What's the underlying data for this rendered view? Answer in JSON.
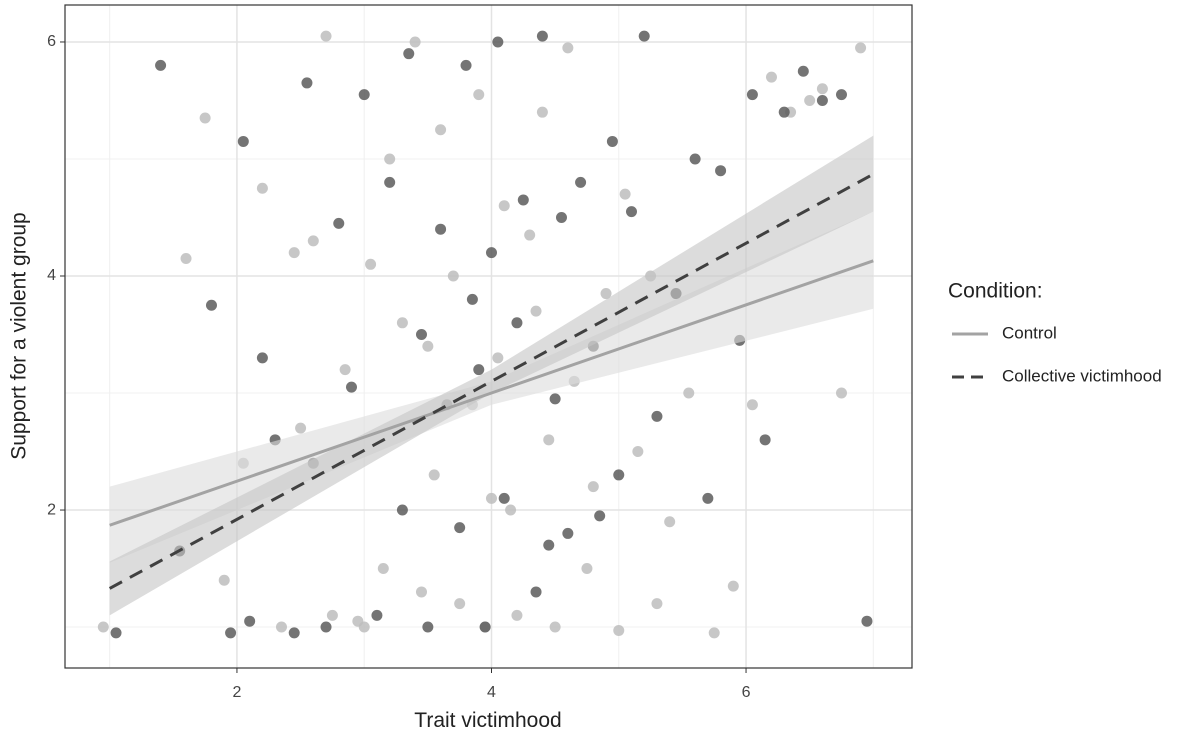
{
  "chart_data": {
    "type": "scatter",
    "x_label": "Trait victimhood",
    "y_label": "Support for a violent group",
    "legend_title": "Condition:",
    "legend_position": "right",
    "xlim": [
      0.649,
      7.304
    ],
    "ylim": [
      0.65,
      6.316
    ],
    "xticks": [
      2,
      4,
      6
    ],
    "yticks": [
      2,
      4,
      6
    ],
    "xminorticks": [
      1,
      3,
      5,
      7
    ],
    "yminorticks": [
      1,
      3,
      5
    ],
    "grid": true,
    "series": [
      {
        "name": "Control",
        "color": "#bdbdbd",
        "line_color": "#a3a3a3",
        "band_color": "#dcdcdc",
        "line_style": "solid",
        "x": [
          0.95,
          1.6,
          1.75,
          1.9,
          2.05,
          2.2,
          2.35,
          2.45,
          2.6,
          2.7,
          2.75,
          2.85,
          2.95,
          3.05,
          3.15,
          3.2,
          3.3,
          3.4,
          3.45,
          3.55,
          3.6,
          3.7,
          3.75,
          3.85,
          3.9,
          3.95,
          4.05,
          4.1,
          4.15,
          4.2,
          4.3,
          4.35,
          4.45,
          4.5,
          4.6,
          4.65,
          4.75,
          4.8,
          4.9,
          5.0,
          5.05,
          5.15,
          5.25,
          5.4,
          5.55,
          5.75,
          5.9,
          6.05,
          6.2,
          6.35,
          6.5,
          6.6,
          6.75,
          6.9,
          2.5,
          3.0,
          3.5,
          4.0,
          4.4,
          5.3
        ],
        "values": [
          1.0,
          4.15,
          5.35,
          1.4,
          2.4,
          4.75,
          1.0,
          4.2,
          4.3,
          6.05,
          1.1,
          3.2,
          1.05,
          4.1,
          1.5,
          5.0,
          3.6,
          6.0,
          1.3,
          2.3,
          5.25,
          4.0,
          1.2,
          2.9,
          5.55,
          1.0,
          3.3,
          4.6,
          2.0,
          1.1,
          4.35,
          3.7,
          2.6,
          1.0,
          5.95,
          3.1,
          1.5,
          2.2,
          3.85,
          0.97,
          4.7,
          2.5,
          4.0,
          1.9,
          3.0,
          0.95,
          1.35,
          2.9,
          5.7,
          5.4,
          5.5,
          5.6,
          3.0,
          5.95,
          2.7,
          1.0,
          3.4,
          2.1,
          5.4,
          1.2
        ],
        "fit": {
          "x": [
            1,
            4,
            7
          ],
          "values": [
            1.87,
            3.0,
            4.13
          ],
          "lower": [
            1.55,
            2.9,
            3.72
          ],
          "upper": [
            2.2,
            3.1,
            4.55
          ]
        }
      },
      {
        "name": "Collective victimhood",
        "color": "#5c5c5c",
        "line_color": "#404040",
        "band_color": "#c4c4c4",
        "line_style": "dashed",
        "x": [
          1.05,
          1.4,
          1.55,
          1.8,
          1.95,
          2.05,
          2.1,
          2.2,
          2.3,
          2.45,
          2.55,
          2.6,
          2.7,
          2.8,
          2.9,
          3.0,
          3.1,
          3.2,
          3.3,
          3.35,
          3.45,
          3.5,
          3.6,
          3.65,
          3.75,
          3.8,
          3.9,
          3.95,
          4.0,
          4.05,
          4.1,
          4.2,
          4.25,
          4.35,
          4.4,
          4.5,
          4.55,
          4.6,
          4.7,
          4.8,
          4.85,
          4.95,
          5.0,
          5.1,
          5.2,
          5.3,
          5.45,
          5.6,
          5.7,
          5.8,
          5.95,
          6.05,
          6.15,
          6.3,
          6.45,
          6.6,
          6.75,
          6.95,
          3.85,
          4.45
        ],
        "values": [
          0.95,
          5.8,
          1.65,
          3.75,
          0.95,
          5.15,
          1.05,
          3.3,
          2.6,
          0.95,
          5.65,
          2.4,
          1.0,
          4.45,
          3.05,
          5.55,
          1.1,
          4.8,
          2.0,
          5.9,
          3.5,
          1.0,
          4.4,
          2.9,
          1.85,
          5.8,
          3.2,
          1.0,
          4.2,
          6.0,
          2.1,
          3.6,
          4.65,
          1.3,
          6.05,
          2.95,
          4.5,
          1.8,
          4.8,
          3.4,
          1.95,
          5.15,
          2.3,
          4.55,
          6.05,
          2.8,
          3.85,
          5.0,
          2.1,
          4.9,
          3.45,
          5.55,
          2.6,
          5.4,
          5.75,
          5.5,
          5.55,
          1.05,
          3.8,
          1.7
        ],
        "fit": {
          "x": [
            1,
            4,
            7
          ],
          "values": [
            1.33,
            3.1,
            4.87
          ],
          "lower": [
            1.1,
            3.0,
            4.55
          ],
          "upper": [
            1.56,
            3.2,
            5.2
          ]
        }
      }
    ]
  }
}
